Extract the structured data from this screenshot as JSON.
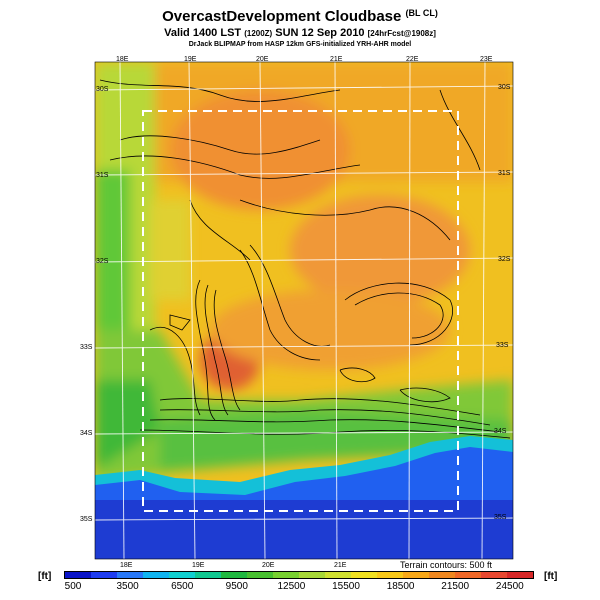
{
  "title": {
    "main": "OvercastDevelopment Cloudbase",
    "suffix": "(BL CL)",
    "valid": "Valid 1400 LST",
    "zulu": "(1200Z)",
    "date": "SUN 12 Sep 2010",
    "forecast": "[24hrFcst@1908z]",
    "credit": "DrJack BLIPMAP from HASP 12km GFS-initialized YRH-AHR model"
  },
  "map": {
    "lon_labels": [
      "18E",
      "19E",
      "20E",
      "21E",
      "22E",
      "23E"
    ],
    "lon_labels_bottom": [
      "18E",
      "19E",
      "20E",
      "21E"
    ],
    "lat_labels_left": [
      "30S",
      "31S",
      "32S",
      "33S",
      "34S",
      "35S"
    ],
    "lat_labels_right": [
      "30S",
      "31S",
      "32S",
      "33S",
      "34S",
      "35S"
    ],
    "terrain_note": "Terrain contours: 500 ft",
    "colors": {
      "ocean": "#1e3cd2",
      "coast": "#10c8d8",
      "low_land": "#30b838",
      "mid_land": "#9cd83a",
      "high": "#f0c020",
      "peak": "#f07830",
      "max": "#e05030"
    }
  },
  "colorbar": {
    "unit_left": "[ft]",
    "unit_right": "[ft]",
    "ticks": [
      "500",
      "3500",
      "6500",
      "9500",
      "12500",
      "15500",
      "18500",
      "21500",
      "24500"
    ],
    "colors": [
      "#0a14c8",
      "#1e3cf0",
      "#2878f8",
      "#10b4f0",
      "#10d0d0",
      "#10c890",
      "#20b840",
      "#48c030",
      "#78d030",
      "#a8d838",
      "#d0e030",
      "#f0e020",
      "#f8c818",
      "#f8a818",
      "#f08820",
      "#f06828",
      "#e84830",
      "#d82828"
    ]
  }
}
